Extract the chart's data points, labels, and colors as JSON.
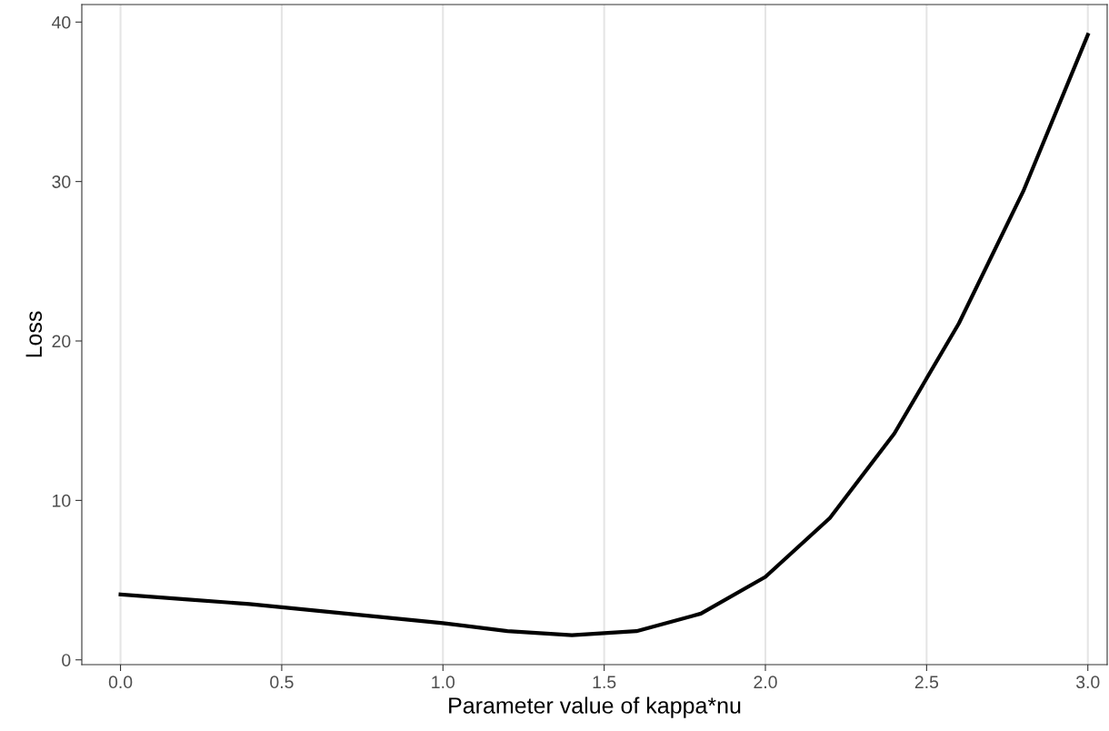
{
  "chart_data": {
    "type": "line",
    "xlabel": "Parameter value of kappa*nu",
    "ylabel": "Loss",
    "x": [
      0.0,
      0.2,
      0.4,
      0.6,
      0.8,
      1.0,
      1.2,
      1.4,
      1.6,
      1.8,
      2.0,
      2.2,
      2.4,
      2.6,
      2.8,
      3.0
    ],
    "series": [
      {
        "color": "#000000",
        "values": [
          4.1,
          3.8,
          3.5,
          3.1,
          2.7,
          2.3,
          1.8,
          1.55,
          1.8,
          2.9,
          5.2,
          8.9,
          14.2,
          21.1,
          29.4,
          39.2
        ]
      }
    ],
    "xlim": [
      -0.12,
      3.06
    ],
    "ylim": [
      -0.3,
      41.1
    ],
    "xticks": [
      {
        "value": 0,
        "label": "0.0"
      },
      {
        "value": 0.5,
        "label": "0.5"
      },
      {
        "value": 1,
        "label": "1.0"
      },
      {
        "value": 1.5,
        "label": "1.5"
      },
      {
        "value": 2,
        "label": "2.0"
      },
      {
        "value": 2.5,
        "label": "2.5"
      },
      {
        "value": 3,
        "label": "3.0"
      }
    ],
    "yticks": [
      0,
      10,
      20,
      30,
      40
    ],
    "grid": "x",
    "line_style": "solid",
    "marker": "none"
  }
}
